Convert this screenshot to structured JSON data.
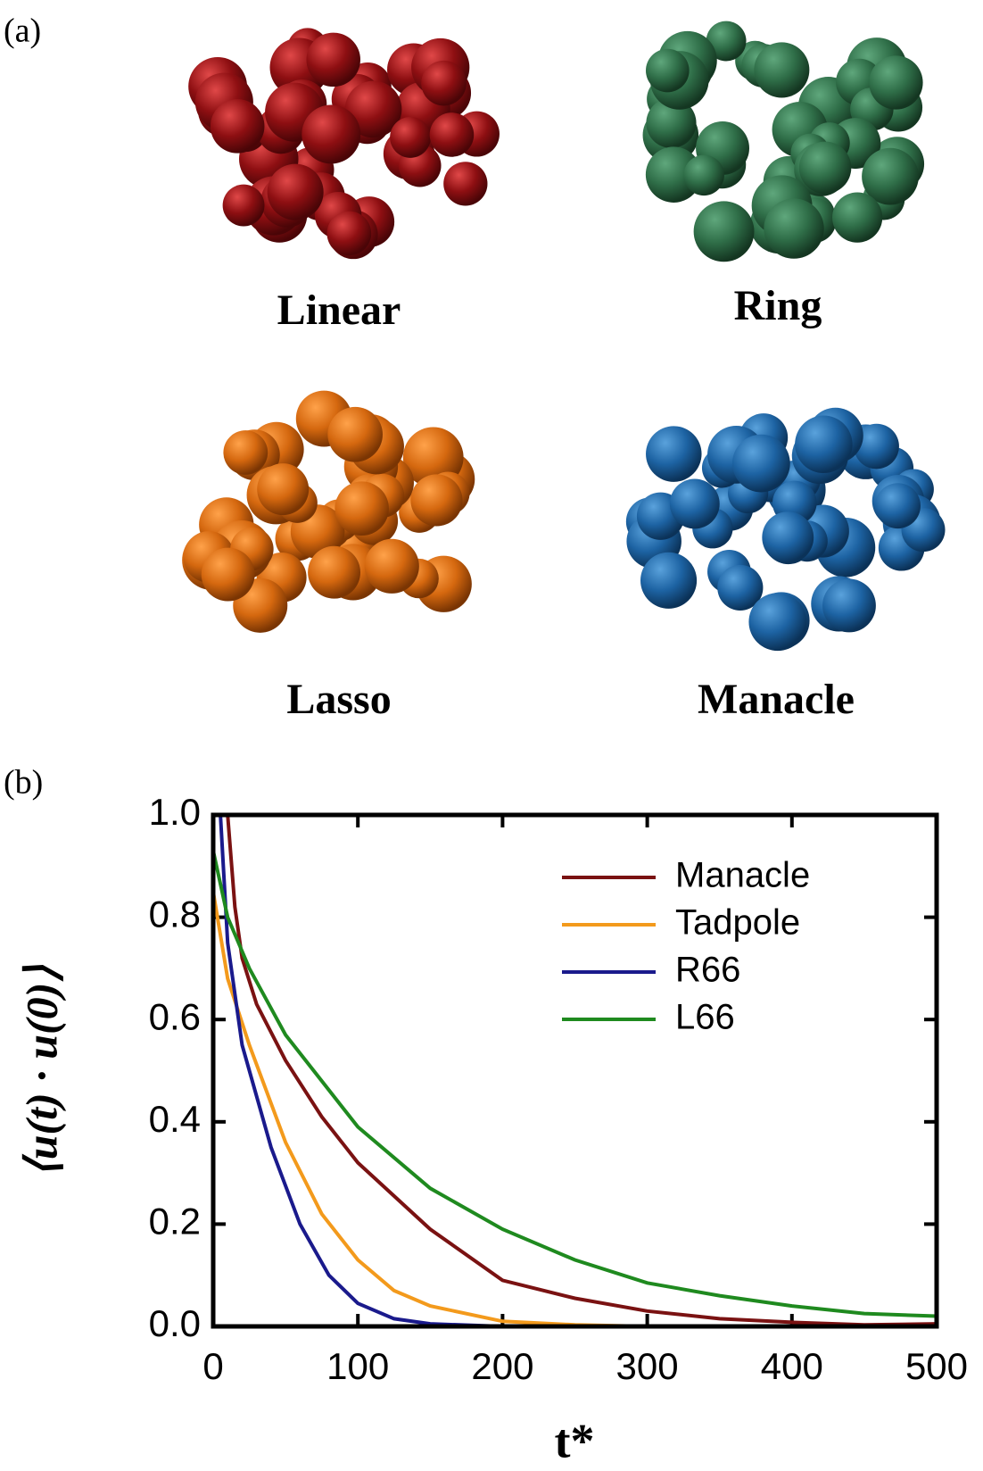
{
  "panel_a": {
    "label": "(a)",
    "molecules": [
      "Linear",
      "Ring",
      "Lasso",
      "Manacle"
    ]
  },
  "chart_data": {
    "type": "line",
    "panel_label": "(b)",
    "x_label": "t*",
    "y_label": "⟨u(t) · u(0)⟩",
    "xlim": [
      0,
      500
    ],
    "xticks": [
      0,
      100,
      200,
      300,
      400,
      500
    ],
    "ylim": [
      0,
      1
    ],
    "yticks": [
      {
        "value": 0,
        "label": "0.0"
      },
      0.2,
      0.4,
      0.6,
      0.8,
      {
        "value": 1,
        "label": "1.0"
      }
    ],
    "legend": "upper right",
    "series": [
      {
        "name": "Manacle",
        "color": "#7a1212",
        "x": [
          10,
          15,
          20,
          30,
          50,
          75,
          100,
          150,
          200,
          250,
          300,
          350,
          400,
          450,
          500
        ],
        "values": [
          1.0,
          0.82,
          0.72,
          0.63,
          0.52,
          0.41,
          0.32,
          0.19,
          0.09,
          0.055,
          0.03,
          0.015,
          0.008,
          0.003,
          0.005
        ]
      },
      {
        "name": "Tadpole",
        "color": "#f39a1c",
        "x": [
          0,
          10,
          25,
          50,
          75,
          100,
          125,
          150,
          200,
          250,
          300,
          500
        ],
        "values": [
          0.85,
          0.68,
          0.55,
          0.36,
          0.22,
          0.13,
          0.07,
          0.04,
          0.01,
          0.003,
          0,
          0
        ]
      },
      {
        "name": "R66",
        "color": "#1a1a8c",
        "x": [
          5,
          10,
          20,
          40,
          60,
          80,
          100,
          125,
          150,
          200,
          500
        ],
        "values": [
          1.0,
          0.75,
          0.55,
          0.35,
          0.2,
          0.1,
          0.045,
          0.015,
          0.005,
          0,
          0
        ]
      },
      {
        "name": "L66",
        "color": "#1f8a1f",
        "x": [
          0,
          10,
          25,
          50,
          100,
          150,
          200,
          250,
          300,
          350,
          400,
          450,
          500
        ],
        "values": [
          0.93,
          0.8,
          0.7,
          0.57,
          0.39,
          0.27,
          0.19,
          0.13,
          0.085,
          0.06,
          0.04,
          0.025,
          0.02
        ]
      }
    ]
  }
}
